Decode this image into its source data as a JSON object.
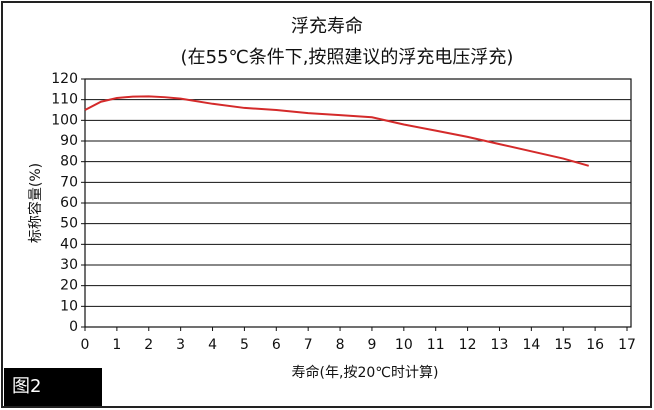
{
  "chart_data": {
    "type": "line",
    "title": "浮充寿命",
    "subtitle": "(在55℃条件下,按照建议的浮充电压浮充)",
    "y_label": "标称容量(%)",
    "x_label": "寿命(年,按20℃时计算)",
    "figure_label": "图2",
    "x": [
      0,
      0.5,
      1,
      1.5,
      2,
      2.5,
      3,
      4,
      5,
      6,
      7,
      8,
      9,
      10,
      11,
      12,
      13,
      14,
      15,
      15.8
    ],
    "values": [
      105,
      109,
      110.8,
      111.5,
      111.6,
      111.2,
      110.5,
      108,
      106,
      105,
      103.5,
      102.5,
      101.5,
      98,
      95,
      92,
      88.5,
      85,
      81.5,
      78
    ],
    "color": "#d42a2a",
    "xlim": [
      0,
      17
    ],
    "ylim": [
      0,
      120
    ],
    "xticks": [
      0,
      1,
      2,
      3,
      4,
      5,
      6,
      7,
      8,
      9,
      10,
      11,
      12,
      13,
      14,
      15,
      16,
      17
    ],
    "yticks": [
      0,
      10,
      20,
      30,
      40,
      50,
      60,
      70,
      80,
      90,
      100,
      110,
      120
    ],
    "grid": true
  }
}
